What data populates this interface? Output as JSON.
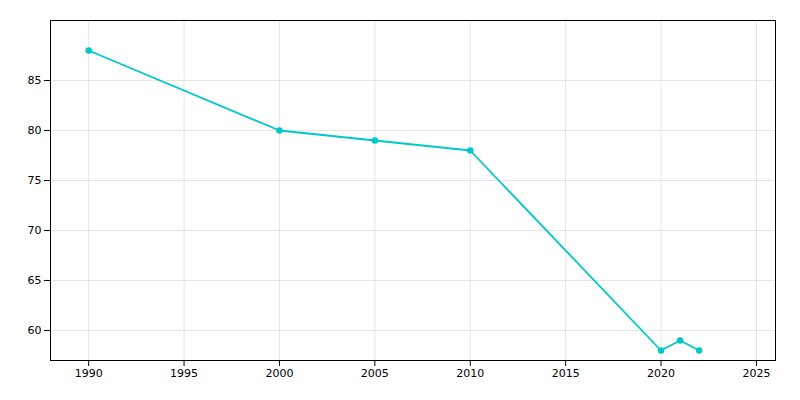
{
  "chart_data": {
    "type": "line",
    "x": [
      1990,
      2000,
      2005,
      2010,
      2020,
      2021,
      2022
    ],
    "values": [
      88,
      80,
      79,
      78,
      58,
      59,
      58
    ],
    "color": "#00c8c8",
    "marker": "circle",
    "xlim": [
      1988,
      2026
    ],
    "ylim": [
      57,
      91
    ],
    "xticks": [
      1990,
      1995,
      2000,
      2005,
      2010,
      2015,
      2020,
      2025
    ],
    "yticks": [
      60,
      65,
      70,
      75,
      80,
      85
    ],
    "grid": true
  }
}
